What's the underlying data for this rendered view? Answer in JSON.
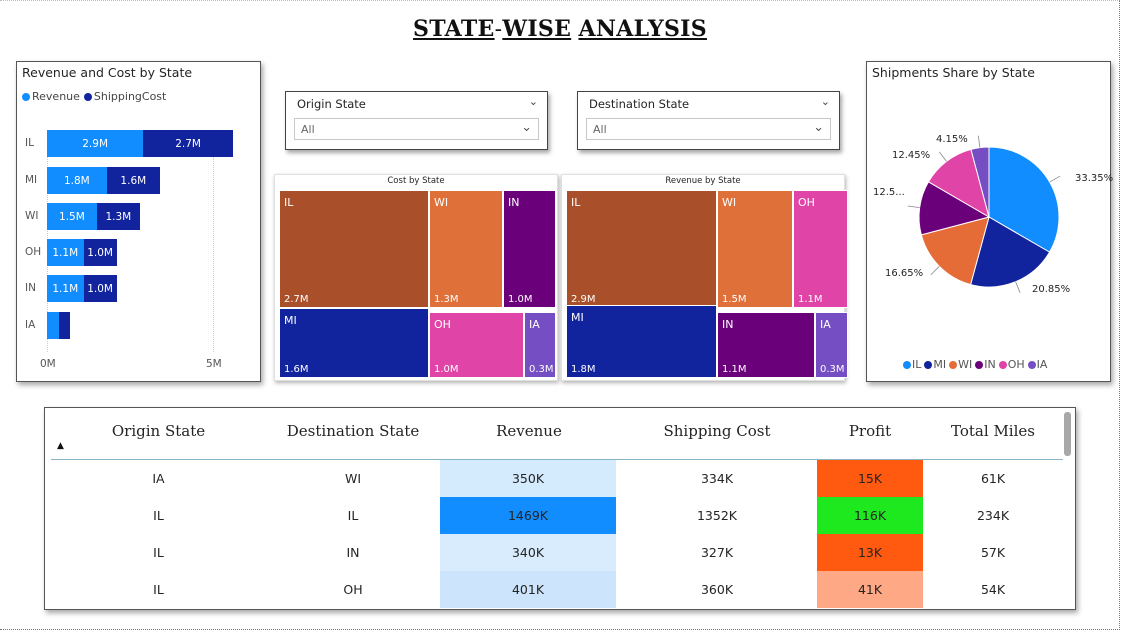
{
  "page": {
    "title_parts": [
      "STATE",
      "-",
      "WISE",
      " ",
      "ANALYSIS"
    ]
  },
  "bar_chart": {
    "title": "Revenue and Cost by State",
    "legend": [
      {
        "label": "Revenue",
        "color": "#118DFF"
      },
      {
        "label": "ShippingCost",
        "color": "#12239E"
      }
    ],
    "axis_ticks": [
      "0M",
      "5M"
    ],
    "chart_data": {
      "type": "bar",
      "orientation": "horizontal-stacked",
      "categories": [
        "IL",
        "MI",
        "WI",
        "OH",
        "IN",
        "IA"
      ],
      "series": [
        {
          "name": "Revenue",
          "values": [
            2.9,
            1.8,
            1.5,
            1.1,
            1.1,
            0.35
          ],
          "labels": [
            "2.9M",
            "1.8M",
            "1.5M",
            "1.1M",
            "1.1M",
            ""
          ]
        },
        {
          "name": "ShippingCost",
          "values": [
            2.7,
            1.6,
            1.3,
            1.0,
            1.0,
            0.33
          ],
          "labels": [
            "2.7M",
            "1.6M",
            "1.3M",
            "1.0M",
            "1.0M",
            ""
          ]
        }
      ],
      "xlim": [
        0,
        6
      ],
      "x_ticks": [
        "0M",
        "5M"
      ]
    }
  },
  "slicers": [
    {
      "label": "Origin State",
      "value": "All"
    },
    {
      "label": "Destination State",
      "value": "All"
    }
  ],
  "icons": {
    "chevron": "chevron-down-icon",
    "sort": "sort-ascending-icon"
  },
  "treemap_cost": {
    "title": "Cost by State",
    "tiles": [
      {
        "name": "IL",
        "value": "2.7M",
        "color": "#A9502A"
      },
      {
        "name": "WI",
        "value": "1.3M",
        "color": "#E0703A"
      },
      {
        "name": "IN",
        "value": "1.0M",
        "color": "#6B007B"
      },
      {
        "name": "MI",
        "value": "1.6M",
        "color": "#12239E"
      },
      {
        "name": "OH",
        "value": "1.0M",
        "color": "#E044A7"
      },
      {
        "name": "IA",
        "value": "0.3M",
        "color": "#744EC2"
      }
    ]
  },
  "treemap_revenue": {
    "title": "Revenue by State",
    "tiles": [
      {
        "name": "IL",
        "value": "2.9M",
        "color": "#A9502A"
      },
      {
        "name": "WI",
        "value": "1.5M",
        "color": "#E0703A"
      },
      {
        "name": "OH",
        "value": "1.1M",
        "color": "#E044A7"
      },
      {
        "name": "MI",
        "value": "1.8M",
        "color": "#12239E"
      },
      {
        "name": "IN",
        "value": "1.1M",
        "color": "#6B007B"
      },
      {
        "name": "IA",
        "value": "0.3M",
        "color": "#744EC2"
      }
    ]
  },
  "pie_chart": {
    "title": "Shipments Share by State",
    "chart_data": {
      "type": "pie",
      "categories": [
        "IL",
        "MI",
        "WI",
        "IN",
        "OH",
        "IA"
      ],
      "values": [
        33.35,
        20.85,
        16.65,
        12.5,
        12.45,
        4.15
      ],
      "labels": [
        "33.35%",
        "20.85%",
        "16.65%",
        "12.5...",
        "12.45%",
        "4.15%"
      ],
      "colors": [
        "#118DFF",
        "#12239E",
        "#E66C37",
        "#6B007B",
        "#E044A7",
        "#744EC2"
      ]
    },
    "legend": [
      "IL",
      "MI",
      "WI",
      "IN",
      "OH",
      "IA"
    ]
  },
  "table": {
    "columns": [
      "Origin State",
      "Destination State",
      "Revenue",
      "Shipping Cost",
      "Profit",
      "Total Miles"
    ],
    "rows": [
      {
        "origin": "IA",
        "destination": "WI",
        "revenue": "350K",
        "shipping_cost": "334K",
        "profit": "15K",
        "total_miles": "61K",
        "revenue_bg": "#D4EAFD",
        "profit_bg": "#FF5A0F"
      },
      {
        "origin": "IL",
        "destination": "IL",
        "revenue": "1469K",
        "shipping_cost": "1352K",
        "profit": "116K",
        "total_miles": "234K",
        "revenue_bg": "#118DFF",
        "profit_bg": "#1EE81E"
      },
      {
        "origin": "IL",
        "destination": "IN",
        "revenue": "340K",
        "shipping_cost": "327K",
        "profit": "13K",
        "total_miles": "57K",
        "revenue_bg": "#D8ECFD",
        "profit_bg": "#FF5A0F"
      },
      {
        "origin": "IL",
        "destination": "OH",
        "revenue": "401K",
        "shipping_cost": "360K",
        "profit": "41K",
        "total_miles": "54K",
        "revenue_bg": "#CCE5FC",
        "profit_bg": "#FFA886"
      }
    ]
  }
}
